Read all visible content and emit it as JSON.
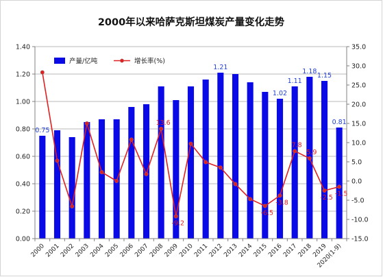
{
  "chart_data": {
    "type": "bar+line",
    "title": "2000年以来哈萨克斯坦煤炭产量变化走势",
    "categories": [
      "2000",
      "2001",
      "2002",
      "2003",
      "2004",
      "2005",
      "2006",
      "2007",
      "2008",
      "2009",
      "2010",
      "2011",
      "2012",
      "2013",
      "2014",
      "2015",
      "2016",
      "2017",
      "2018",
      "2019",
      "2020(1-9)"
    ],
    "series": [
      {
        "name": "产量/亿吨",
        "type": "bar",
        "axis": "left",
        "color": "#0a0ae6",
        "values": [
          0.75,
          0.79,
          0.74,
          0.85,
          0.87,
          0.87,
          0.96,
          0.98,
          1.11,
          1.01,
          1.11,
          1.16,
          1.21,
          1.2,
          1.14,
          1.07,
          1.02,
          1.11,
          1.18,
          1.15,
          0.81
        ]
      },
      {
        "name": "增长率(%)",
        "type": "line",
        "axis": "right",
        "color": "#e02020",
        "values": [
          28.3,
          5.3,
          -6.6,
          15.0,
          2.3,
          0.0,
          10.8,
          1.8,
          13.6,
          -9.2,
          9.7,
          4.9,
          3.5,
          -0.8,
          -4.7,
          -6.5,
          -3.8,
          7.8,
          5.9,
          -2.5,
          -1.5
        ]
      }
    ],
    "bar_labels": [
      {
        "index": 0,
        "text": "0.75"
      },
      {
        "index": 12,
        "text": "1.21"
      },
      {
        "index": 16,
        "text": "1.02"
      },
      {
        "index": 17,
        "text": "1.11"
      },
      {
        "index": 18,
        "text": "1.18"
      },
      {
        "index": 19,
        "text": "1.15"
      },
      {
        "index": 20,
        "text": "0.81"
      }
    ],
    "line_labels": [
      {
        "index": 8,
        "text": "13.6"
      },
      {
        "index": 9,
        "text": "-9.2"
      },
      {
        "index": 15,
        "text": "-6.5"
      },
      {
        "index": 16,
        "text": "-3.8"
      },
      {
        "index": 17,
        "text": "7.8"
      },
      {
        "index": 18,
        "text": "5.9"
      },
      {
        "index": 19,
        "text": "-2.5"
      },
      {
        "index": 20,
        "text": "-1.5"
      }
    ],
    "y_left": {
      "min": 0,
      "max": 1.4,
      "step": 0.2,
      "decimals": 2
    },
    "y_right": {
      "min": -15,
      "max": 35,
      "step": 5,
      "decimals": 1
    },
    "grid": true,
    "legend_position": "top-left"
  }
}
